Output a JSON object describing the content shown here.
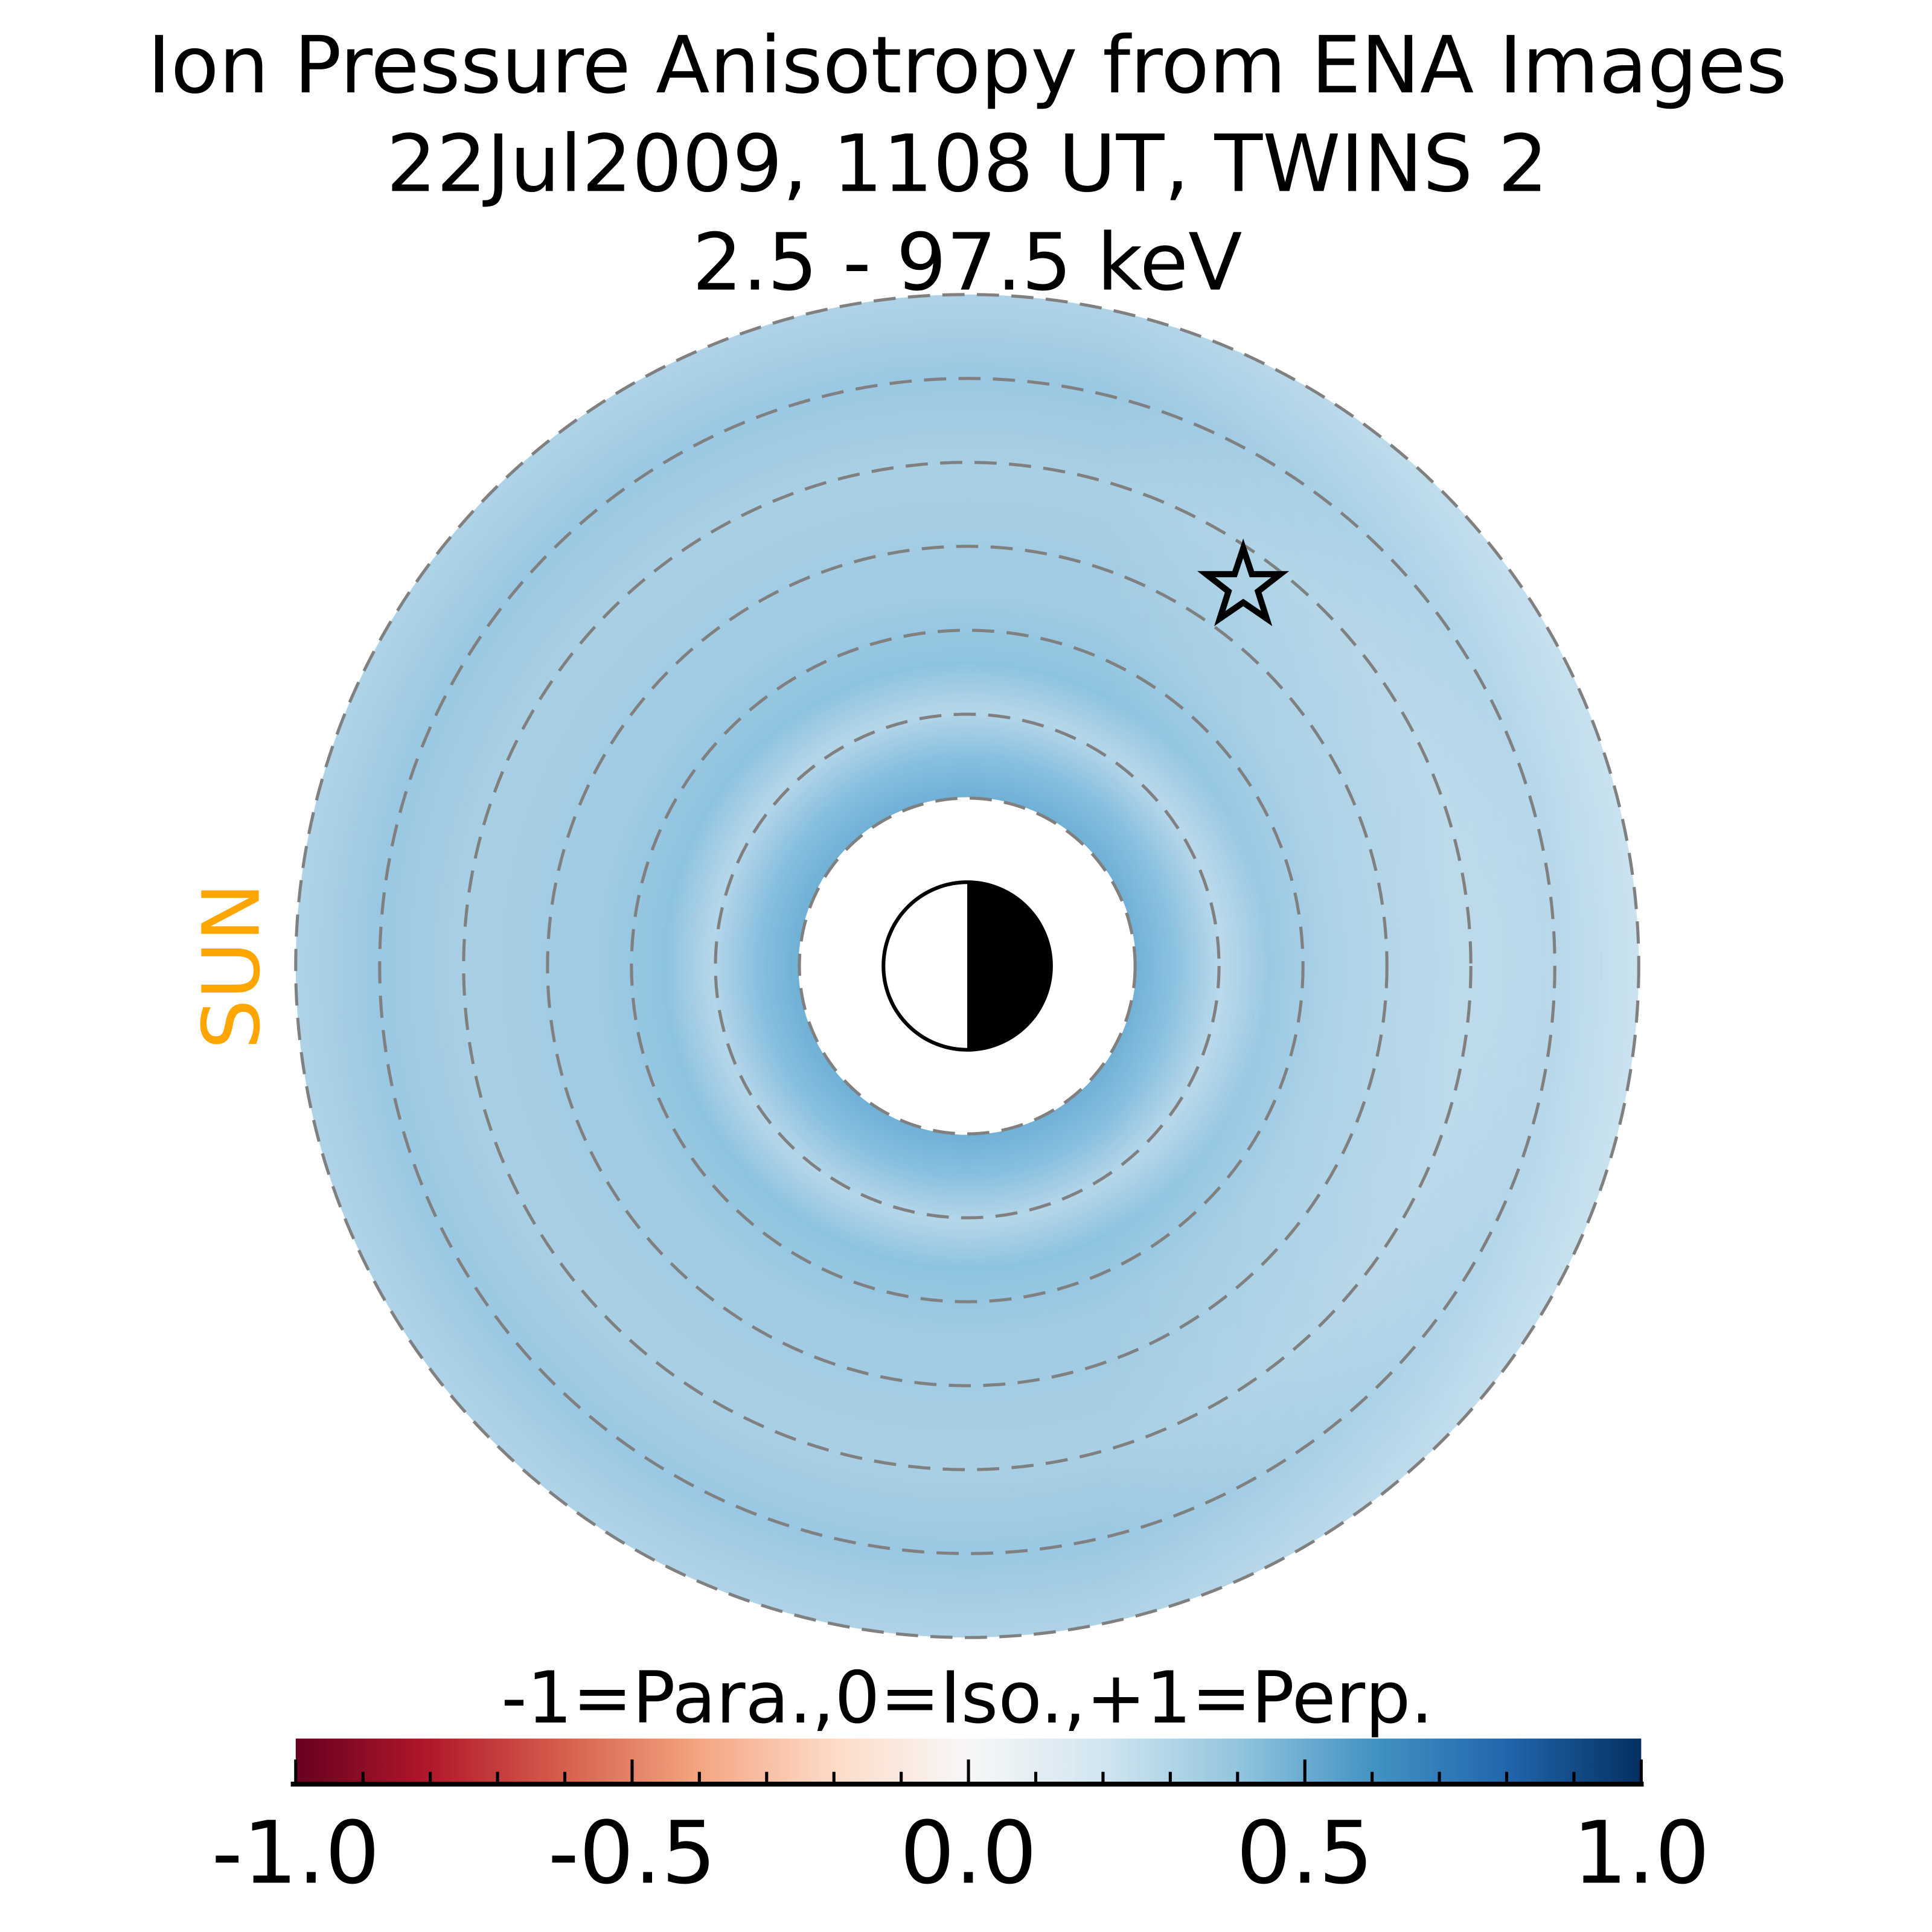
{
  "chart_data": {
    "type": "heatmap",
    "title_lines": [
      "Ion Pressure Anisotropy from  ENA Images",
      "22Jul2009, 1108 UT,  TWINS 2",
      "2.5 - 97.5 keV"
    ],
    "sun_label": "SUN",
    "colorbar": {
      "label": "-1=Para.,0=Iso.,+1=Perp.",
      "range": [
        -1.0,
        1.0
      ],
      "major_ticks": [
        -1.0,
        -0.5,
        0.0,
        0.5,
        1.0
      ],
      "major_tick_labels": [
        "-1.0",
        "-0.5",
        "0.0",
        "0.5",
        "1.0"
      ],
      "minor_step": 0.1,
      "colormap": [
        "#67001f",
        "#b2182b",
        "#d6604d",
        "#f4a582",
        "#fddbc7",
        "#f7f7f7",
        "#d1e5f0",
        "#92c5de",
        "#4393c3",
        "#2166ac",
        "#053061"
      ]
    },
    "radial_grid_re": [
      2,
      3,
      4,
      5,
      6,
      7,
      8
    ],
    "inner_boundary_re": 2,
    "outer_boundary_re": 8,
    "typical_anisotropy": 0.3,
    "colors": {
      "sun": "#ffa500",
      "grid": "#808080"
    }
  }
}
